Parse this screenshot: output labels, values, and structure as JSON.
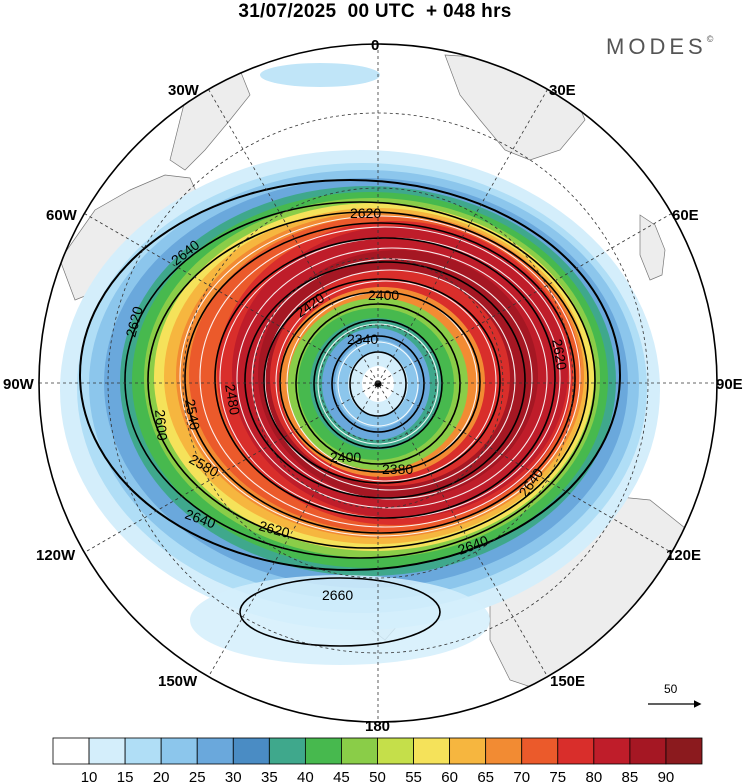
{
  "header": {
    "date": "31/07/2025",
    "run": "00 UTC",
    "lead": "+ 048 hrs"
  },
  "brand": {
    "name": "MODES",
    "mark": "©"
  },
  "map": {
    "projection": "south-polar-stereographic",
    "longitude_labels": [
      "0",
      "30E",
      "60E",
      "90E",
      "120E",
      "150E",
      "180",
      "150W",
      "120W",
      "90W",
      "60W",
      "30W"
    ],
    "height_contours": [
      {
        "value": "2340",
        "label": "2340"
      },
      {
        "value": "2360",
        "label": "2360"
      },
      {
        "value": "2380",
        "label": "2380"
      },
      {
        "value": "2400",
        "label": "2400"
      },
      {
        "value": "2420",
        "label": "2420"
      },
      {
        "value": "2440",
        "label": "2440"
      },
      {
        "value": "2460",
        "label": "2460"
      },
      {
        "value": "2480",
        "label": "2480"
      },
      {
        "value": "2500",
        "label": "2500"
      },
      {
        "value": "2520",
        "label": "2520"
      },
      {
        "value": "2540",
        "label": "2540"
      },
      {
        "value": "2560",
        "label": "2560"
      },
      {
        "value": "2580",
        "label": "2580"
      },
      {
        "value": "2600",
        "label": "2600"
      },
      {
        "value": "2620",
        "label": "2620"
      },
      {
        "value": "2640",
        "label": "2640"
      },
      {
        "value": "2660",
        "label": "2660"
      }
    ],
    "reference_vector": "50"
  },
  "colorbar": {
    "ticks": [
      "10",
      "15",
      "20",
      "25",
      "30",
      "35",
      "40",
      "45",
      "50",
      "55",
      "60",
      "65",
      "70",
      "75",
      "80",
      "85",
      "90"
    ],
    "colors": [
      "#ffffff",
      "#d4eefb",
      "#b0def6",
      "#8cc6ec",
      "#6aa8dc",
      "#4a8cc4",
      "#3fa88c",
      "#47b94e",
      "#8acd48",
      "#c5df4a",
      "#f5e25a",
      "#f6b63f",
      "#f28b33",
      "#eb5a2b",
      "#d92e2b",
      "#bf1d2a",
      "#a51723",
      "#8b1a1e"
    ]
  }
}
